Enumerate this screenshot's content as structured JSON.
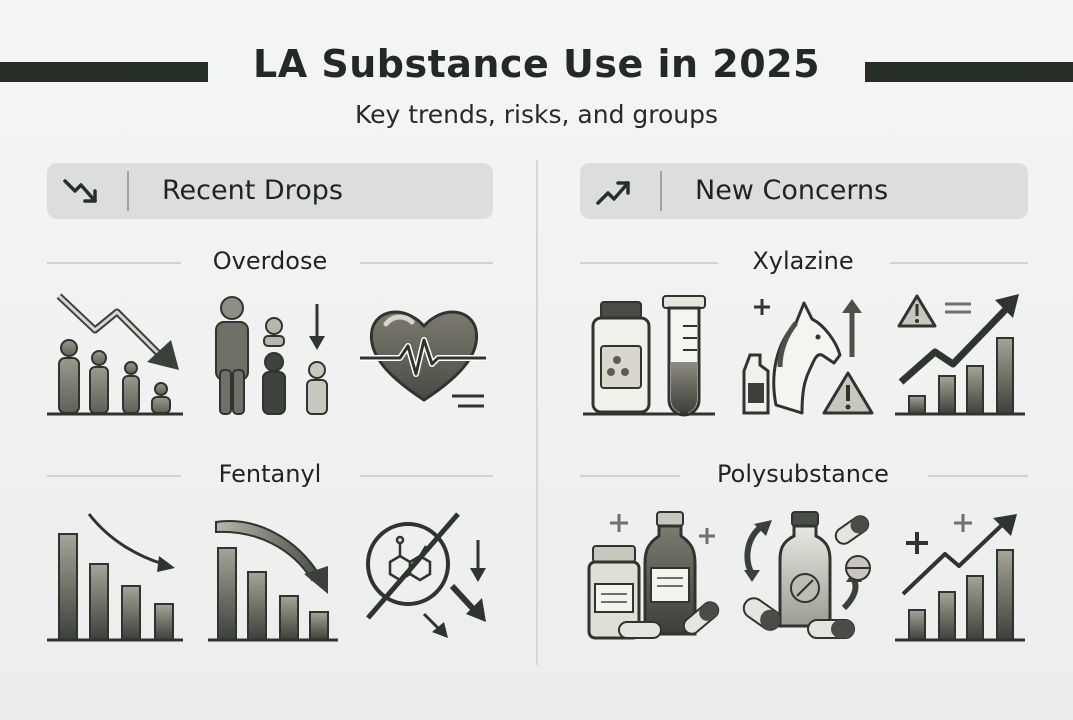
{
  "title": "LA Substance Use in 2025",
  "subtitle": "Key trends, risks, and groups",
  "sections": [
    {
      "header": "Recent Drops",
      "icon": "trend-down-icon",
      "subsections": [
        {
          "label": "Overdose",
          "icons": [
            "trend-down-people-icon",
            "people-decrease-icon",
            "heart-pulse-icon"
          ]
        },
        {
          "label": "Fentanyl",
          "icons": [
            "bar-chart-decline-icon",
            "bar-chart-decline-icon",
            "fentanyl-molecule-prohibited-icon"
          ]
        }
      ]
    },
    {
      "header": "New Concerns",
      "icon": "trend-up-icon",
      "subsections": [
        {
          "label": "Xylazine",
          "icons": [
            "medicine-bottle-icon",
            "test-tube-icon",
            "horse-warning-icon",
            "warning-growth-chart-icon"
          ]
        },
        {
          "label": "Polysubstance",
          "icons": [
            "medicine-bottles-icon",
            "pills-cycle-icon",
            "growth-chart-icon"
          ]
        }
      ]
    }
  ],
  "colors": {
    "dark": "#263029",
    "header_bg": "#dcdedd",
    "icon_fill": "#8b8b7f",
    "background": "#eff0ef"
  }
}
